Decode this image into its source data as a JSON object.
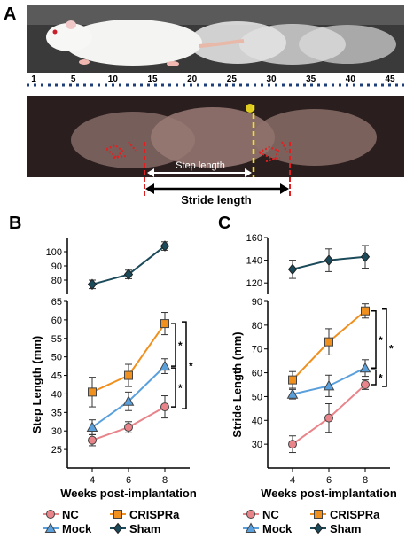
{
  "panels": {
    "a": {
      "letter": "A",
      "ruler_labels": [
        "1",
        "5",
        "10",
        "15",
        "20",
        "25",
        "30",
        "35",
        "40",
        "45"
      ],
      "step_label": "Step length",
      "stride_label": "Stride length"
    },
    "b": {
      "letter": "B"
    },
    "c": {
      "letter": "C"
    }
  },
  "chart_data": [
    {
      "type": "line",
      "panel": "B",
      "xlabel": "Weeks post-implantation",
      "ylabel": "Step Length (mm)",
      "x": [
        4,
        6,
        8
      ],
      "ylim_upper": [
        70,
        110
      ],
      "ylim_lower": [
        20,
        65
      ],
      "yticks_upper": [
        80,
        90,
        100
      ],
      "yticks_lower": [
        25,
        30,
        35,
        40,
        45,
        50,
        55,
        60,
        65
      ],
      "series": [
        {
          "name": "Sham",
          "color": "#1b4a5a",
          "marker": "diamond",
          "values": [
            77,
            84,
            104
          ],
          "errors": [
            3,
            3,
            3
          ]
        },
        {
          "name": "CRISPRa",
          "color": "#f0901e",
          "marker": "square",
          "values": [
            40.5,
            45,
            59
          ],
          "errors": [
            4,
            3,
            3
          ]
        },
        {
          "name": "Mock",
          "color": "#5aa0dc",
          "marker": "triangle",
          "values": [
            31,
            38,
            47.5
          ],
          "errors": [
            2,
            2.5,
            2
          ]
        },
        {
          "name": "NC",
          "color": "#e8848a",
          "marker": "circle",
          "values": [
            27.5,
            31,
            36.5
          ],
          "errors": [
            1.5,
            1.5,
            3
          ]
        }
      ],
      "significance": [
        "*",
        "*",
        "*"
      ]
    },
    {
      "type": "line",
      "panel": "C",
      "xlabel": "Weeks post-implantation",
      "ylabel": "Stride Length (mm)",
      "x": [
        4,
        6,
        8
      ],
      "ylim_upper": [
        110,
        160
      ],
      "ylim_lower": [
        20,
        90
      ],
      "yticks_upper": [
        120,
        140,
        160
      ],
      "yticks_lower": [
        30,
        40,
        50,
        60,
        70,
        80,
        90
      ],
      "series": [
        {
          "name": "Sham",
          "color": "#1b4a5a",
          "marker": "diamond",
          "values": [
            132,
            140,
            143
          ],
          "errors": [
            8,
            10,
            10
          ]
        },
        {
          "name": "CRISPRa",
          "color": "#f0901e",
          "marker": "square",
          "values": [
            57,
            73,
            86
          ],
          "errors": [
            3.5,
            5.5,
            3
          ]
        },
        {
          "name": "Mock",
          "color": "#5aa0dc",
          "marker": "triangle",
          "values": [
            51,
            54.5,
            62
          ],
          "errors": [
            2,
            4.5,
            3.5
          ]
        },
        {
          "name": "NC",
          "color": "#e8848a",
          "marker": "circle",
          "values": [
            30,
            41,
            55
          ],
          "errors": [
            3.5,
            6,
            2
          ]
        }
      ],
      "significance": [
        "*",
        "*",
        "*"
      ]
    }
  ]
}
